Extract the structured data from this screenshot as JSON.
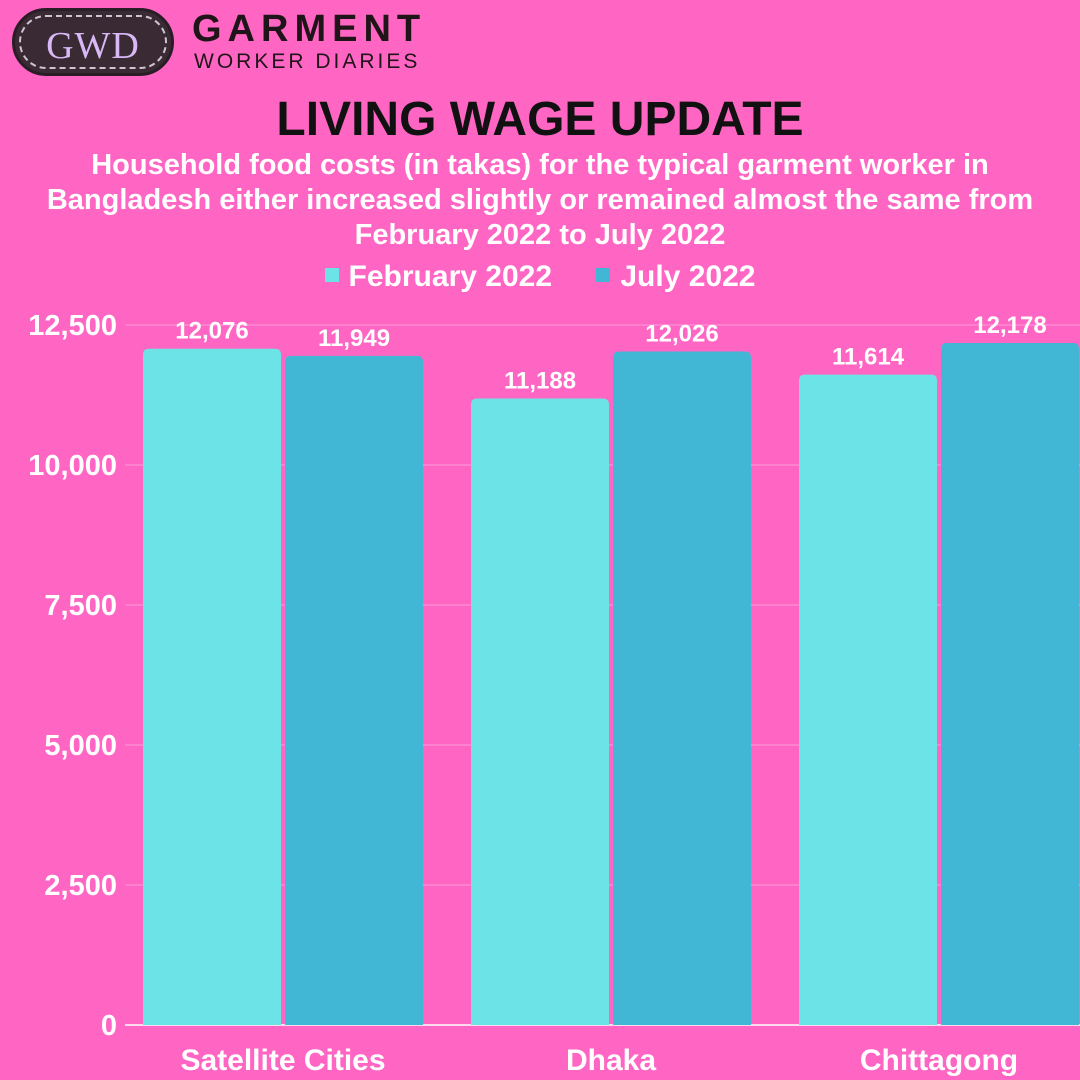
{
  "branding": {
    "logo_text": "GWD",
    "name_line1": "GARMENT",
    "name_line2": "WORKER DIARIES"
  },
  "header": {
    "title": "LIVING WAGE UPDATE",
    "subtitle": "Household food costs (in takas) for the typical garment worker in Bangladesh either increased slightly or remained almost the same from February 2022 to July 2022"
  },
  "colors": {
    "background": "#ff66c4",
    "february": "#6ce3e6",
    "july": "#42b7d5",
    "text": "#ffffff"
  },
  "chart_data": {
    "type": "bar",
    "categories": [
      "Satellite Cities",
      "Dhaka",
      "Chittagong"
    ],
    "series": [
      {
        "name": "February 2022",
        "values": [
          12076,
          11188,
          11614
        ],
        "labels": [
          "12,076",
          "11,188",
          "11,614"
        ],
        "color": "#6ce3e6"
      },
      {
        "name": "July 2022",
        "values": [
          11949,
          12026,
          12178
        ],
        "labels": [
          "11,949",
          "12,026",
          "12,178"
        ],
        "color": "#42b7d5"
      }
    ],
    "yticks": [
      "0",
      "2,500",
      "5,000",
      "7,500",
      "10,000",
      "12,500"
    ],
    "ytick_values": [
      0,
      2500,
      5000,
      7500,
      10000,
      12500
    ],
    "ylim": [
      0,
      12500
    ],
    "grid": true,
    "legend": "top-center"
  }
}
